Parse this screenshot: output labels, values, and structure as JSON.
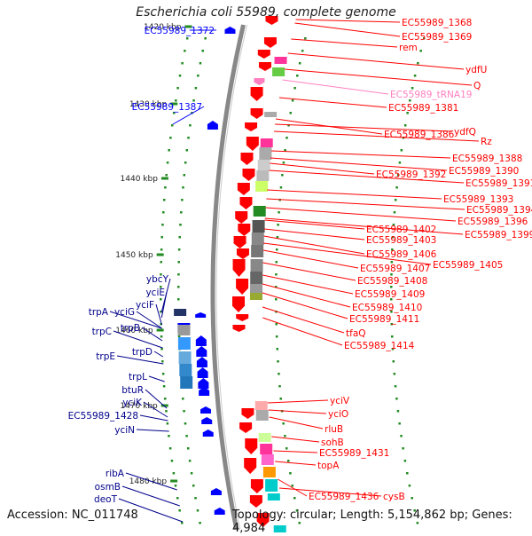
{
  "title": "Escherichia coli 55989, complete genome",
  "accession_text": "Accession: NC_011748",
  "summary_text": "Topology: circular; Length: 5,154,862 bp; Genes: 4,984",
  "colors": {
    "forward_gene": "#ff0000",
    "reverse_gene": "#0000ff",
    "trna": "#ff80c0",
    "scale_tick": "#228b22",
    "backbone": "#888888"
  },
  "scale_ticks": [
    "1420 kbp",
    "1430 kbp",
    "1440 kbp",
    "1450 kbp",
    "1460 kbp",
    "1470 kbp",
    "1480 kbp"
  ],
  "left_labels": [
    "EC55989_1372",
    "EC55989_1387",
    "ybcY",
    "yciE",
    "yciF",
    "trpA",
    "yciG",
    "trpB",
    "trpC",
    "trpD",
    "trpE",
    "trpL",
    "btuR",
    "yciK",
    "EC55989_1428",
    "yciN",
    "ribA",
    "osmB",
    "deoT"
  ],
  "right_labels": [
    "EC55989_1368",
    "EC55989_1369",
    "rem",
    "ydfU",
    "Q",
    "EC55989_tRNA19",
    "EC55989_1381",
    "ydfQ",
    "EC55989_1386",
    "Rz",
    "EC55989_1388",
    "EC55989_1390",
    "EC55989_1392",
    "EC55989_1391",
    "EC55989_1393",
    "EC55989_1394",
    "EC55989_1396",
    "EC55989_1399",
    "EC55989_1402",
    "EC55989_1403",
    "EC55989_1406",
    "EC55989_1405",
    "EC55989_1407",
    "EC55989_1408",
    "EC55989_1409",
    "EC55989_1410",
    "EC55989_1411",
    "tfaQ",
    "EC55989_1414",
    "yciV",
    "yciO",
    "rluB",
    "sohB",
    "EC55989_1431",
    "topA",
    "EC55989_1436",
    "cysB"
  ]
}
